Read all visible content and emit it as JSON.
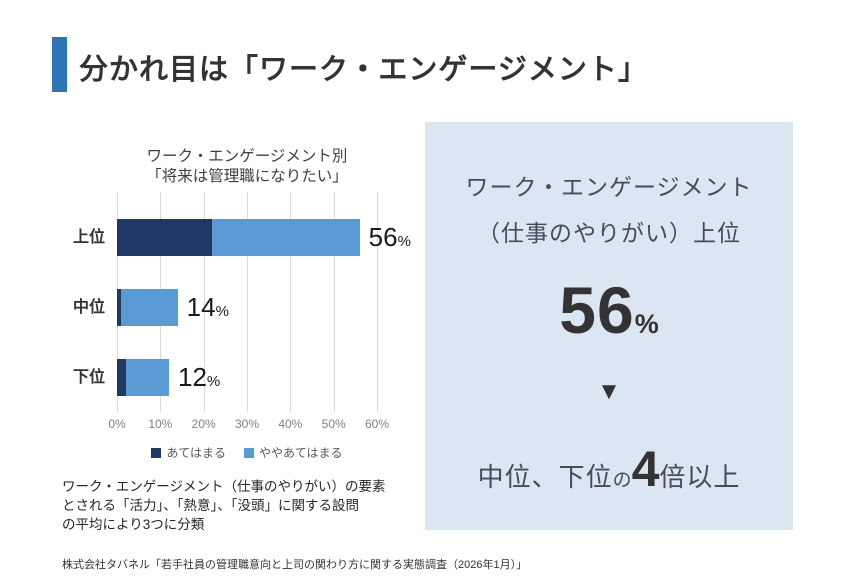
{
  "page": {
    "title": "分かれ目は「ワーク・エンゲージメント」",
    "source": "株式会社タバネル「若手社員の管理職意向と上司の関わり方に関する実態調査（2026年1月）」"
  },
  "colors": {
    "accent_bar": "#2E75B6",
    "series_dark": "#1F3864",
    "series_light": "#5B9BD5",
    "panel_background": "#DCE6F2",
    "gridline": "#D9D9D9",
    "axis_text": "#808080"
  },
  "chart_data": {
    "type": "bar",
    "orientation": "horizontal",
    "stacked": true,
    "title_line1": "ワーク・エンゲージメント別",
    "title_line2": "「将来は管理職になりたい」",
    "categories": [
      "上位",
      "中位",
      "下位"
    ],
    "series": [
      {
        "key": "agree",
        "name": "あてはまる",
        "color": "#1F3864",
        "values": [
          22,
          1,
          2
        ]
      },
      {
        "key": "somewhat-agree",
        "name": "ややあてはまる",
        "color": "#5B9BD5",
        "values": [
          34,
          13,
          10
        ]
      }
    ],
    "totals": [
      "56",
      "14",
      "12"
    ],
    "total_unit": "%",
    "x_ticks": [
      "0%",
      "10%",
      "20%",
      "30%",
      "40%",
      "50%",
      "60%"
    ],
    "xlim": [
      0,
      60
    ],
    "grid": true,
    "legend_position": "bottom"
  },
  "chart_note": {
    "lines": [
      "ワーク・エンゲージメント（仕事のやりがい）の要素",
      "とされる「活力」、「熱意」、「没頭」に関する設問",
      "の平均により3つに分類"
    ]
  },
  "panel": {
    "line1": "ワーク・エンゲージメント",
    "line2": "（仕事のやりがい）上位",
    "big_number": "56",
    "big_unit": "%",
    "arrow": "▼",
    "conclusion_prefix": "中位、下位",
    "conclusion_particle": "の",
    "conclusion_big": "4",
    "conclusion_suffix": "倍以上"
  }
}
